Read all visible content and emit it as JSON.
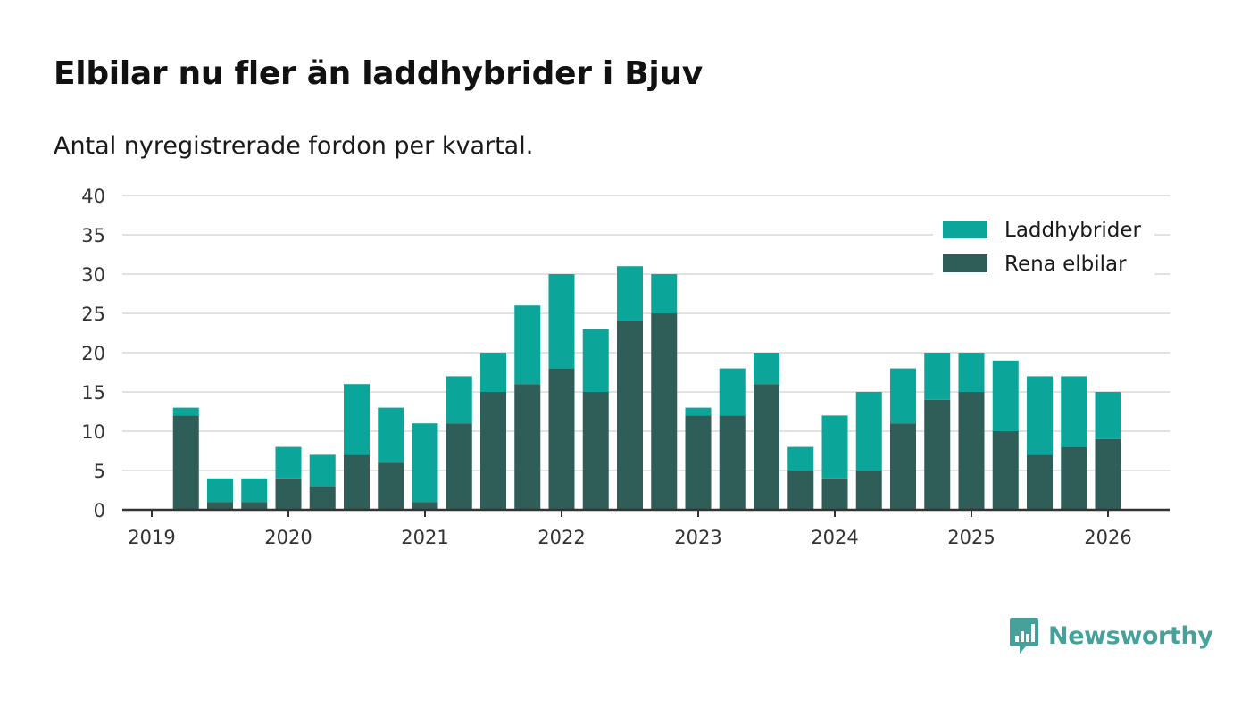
{
  "colors": {
    "hybrid": "#0ca59a",
    "electric": "#2f5d57",
    "grid": "#d9d9d9",
    "axis": "#333333",
    "brand": "#46a19a"
  },
  "brand": {
    "name": "Newsworthy",
    "icon": "bar-chart-speech-bubble-icon"
  },
  "chart_data": {
    "type": "bar",
    "stacked": true,
    "title": "Elbilar nu fler än laddhybrider i Bjuv",
    "subtitle": "Antal nyregistrerade fordon per kvartal.",
    "xlabel": "",
    "ylabel": "",
    "ylim": [
      0,
      40
    ],
    "y_ticks": [
      0,
      5,
      10,
      15,
      20,
      25,
      30,
      35,
      40
    ],
    "x_tick_labels": [
      "2019",
      "2020",
      "2021",
      "2022",
      "2023",
      "2024",
      "2025",
      "2026"
    ],
    "legend_position": "top-right",
    "categories": [
      "2019 Q1",
      "2019 Q2",
      "2019 Q3",
      "2019 Q4",
      "2020 Q1",
      "2020 Q2",
      "2020 Q3",
      "2020 Q4",
      "2021 Q1",
      "2021 Q2",
      "2021 Q3",
      "2021 Q4",
      "2022 Q1",
      "2022 Q2",
      "2022 Q3",
      "2022 Q4",
      "2023 Q1",
      "2023 Q2",
      "2023 Q3",
      "2023 Q4",
      "2024 Q1",
      "2024 Q2",
      "2024 Q3",
      "2024 Q4",
      "2025 Q1",
      "2025 Q2",
      "2025 Q3",
      "2025 Q4"
    ],
    "series": [
      {
        "name": "Rena elbilar",
        "color_key": "electric",
        "values": [
          12,
          1,
          1,
          4,
          3,
          7,
          6,
          1,
          11,
          15,
          16,
          18,
          15,
          24,
          25,
          12,
          12,
          16,
          5,
          4,
          5,
          11,
          14,
          15,
          10,
          7,
          8,
          9
        ]
      },
      {
        "name": "Laddhybrider",
        "color_key": "hybrid",
        "values": [
          1,
          3,
          3,
          4,
          4,
          9,
          7,
          10,
          6,
          5,
          10,
          12,
          8,
          7,
          5,
          1,
          6,
          4,
          3,
          8,
          10,
          7,
          6,
          5,
          9,
          10,
          9,
          6
        ]
      }
    ],
    "legend_order": [
      "Laddhybrider",
      "Rena elbilar"
    ]
  }
}
